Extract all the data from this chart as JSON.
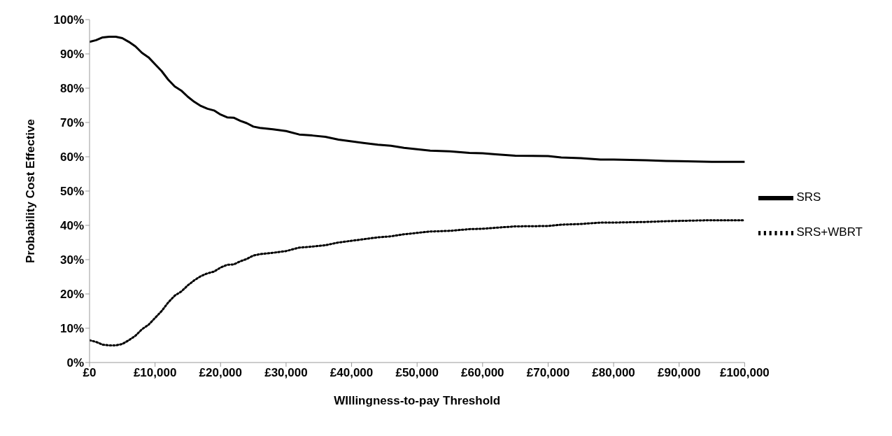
{
  "chart_data": {
    "type": "line",
    "xlabel": "WIllingness-to-pay Threshold",
    "ylabel": "Probability Cost Effective",
    "x": [
      0,
      1000,
      2000,
      3000,
      4000,
      5000,
      6000,
      7000,
      8000,
      9000,
      10000,
      11000,
      12000,
      13000,
      14000,
      15000,
      16000,
      17000,
      18000,
      19000,
      20000,
      21000,
      22000,
      23000,
      24000,
      25000,
      26000,
      28000,
      30000,
      32000,
      34000,
      36000,
      38000,
      40000,
      42000,
      44000,
      46000,
      48000,
      50000,
      52000,
      55000,
      58000,
      60000,
      62000,
      65000,
      70000,
      72000,
      75000,
      78000,
      80000,
      85000,
      88000,
      90000,
      95000,
      100000
    ],
    "series": [
      {
        "name": "SRS",
        "color": "#000000",
        "line_style": "solid",
        "values": [
          93.5,
          94,
          94.8,
          95,
          95,
          94.6,
          93.5,
          92.2,
          90.3,
          89,
          87,
          85,
          82.5,
          80.5,
          79.3,
          77.5,
          76,
          74.8,
          74,
          73.5,
          72.3,
          71.5,
          71.4,
          70.5,
          69.8,
          68.8,
          68.4,
          68,
          67.5,
          66.5,
          66.2,
          65.8,
          65,
          64.5,
          64,
          63.5,
          63.2,
          62.6,
          62.2,
          61.8,
          61.6,
          61.1,
          61,
          60.7,
          60.3,
          60.2,
          59.8,
          59.6,
          59.2,
          59.2,
          59,
          58.8,
          58.7,
          58.5,
          58.5
        ]
      },
      {
        "name": "SRS+WBRT",
        "color": "#000000",
        "line_style": "dotted",
        "values": [
          6.5,
          6,
          5.2,
          5,
          5,
          5.4,
          6.5,
          7.8,
          9.7,
          11,
          13,
          15,
          17.5,
          19.5,
          20.7,
          22.5,
          24,
          25.2,
          26,
          26.5,
          27.7,
          28.5,
          28.6,
          29.5,
          30.2,
          31.2,
          31.6,
          32,
          32.5,
          33.5,
          33.8,
          34.2,
          35,
          35.5,
          36,
          36.5,
          36.8,
          37.4,
          37.8,
          38.2,
          38.4,
          38.9,
          39,
          39.3,
          39.7,
          39.8,
          40.2,
          40.4,
          40.8,
          40.8,
          41,
          41.2,
          41.3,
          41.5,
          41.5
        ]
      }
    ],
    "xlim": [
      0,
      100000
    ],
    "xticks": [
      {
        "value": 0,
        "label": "£0"
      },
      {
        "value": 10000,
        "label": "£10,000"
      },
      {
        "value": 20000,
        "label": "£20,000"
      },
      {
        "value": 30000,
        "label": "£30,000"
      },
      {
        "value": 40000,
        "label": "£40,000"
      },
      {
        "value": 50000,
        "label": "£50,000"
      },
      {
        "value": 60000,
        "label": "£60,000"
      },
      {
        "value": 70000,
        "label": "£70,000"
      },
      {
        "value": 80000,
        "label": "£80,000"
      },
      {
        "value": 90000,
        "label": "£90,000"
      },
      {
        "value": 100000,
        "label": "£100,000"
      }
    ],
    "ylim": [
      0,
      100
    ],
    "yticks": [
      {
        "value": 0,
        "label": "0%"
      },
      {
        "value": 10,
        "label": "10%"
      },
      {
        "value": 20,
        "label": "20%"
      },
      {
        "value": 30,
        "label": "30%"
      },
      {
        "value": 40,
        "label": "40%"
      },
      {
        "value": 50,
        "label": "50%"
      },
      {
        "value": 60,
        "label": "60%"
      },
      {
        "value": 70,
        "label": "70%"
      },
      {
        "value": 80,
        "label": "80%"
      },
      {
        "value": 90,
        "label": "90%"
      },
      {
        "value": 100,
        "label": "100%"
      }
    ],
    "grid": false,
    "legend": "right",
    "marker": "none"
  }
}
